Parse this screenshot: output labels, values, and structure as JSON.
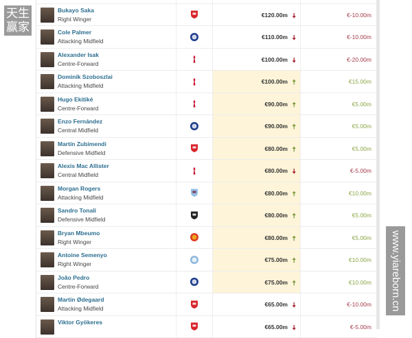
{
  "colors": {
    "up": "#7a9a3a",
    "down": "#a4202c",
    "up_text": "#8aa545",
    "down_text": "#a23a4a",
    "highlight": "#fdf4d9",
    "name_link": "#2c6e8f"
  },
  "players": [
    {
      "name": "",
      "position": "",
      "club": "arsenal",
      "value": "",
      "trend": "",
      "change": ""
    },
    {
      "name": "Bukayo Saka",
      "position": "Right Winger",
      "club": "arsenal",
      "value": "€120.00m",
      "trend": "down",
      "change": "€-10.00m"
    },
    {
      "name": "Cole Palmer",
      "position": "Attacking Midfield",
      "club": "chelsea",
      "value": "€110.00m",
      "trend": "down",
      "change": "€-10.00m"
    },
    {
      "name": "Alexander Isak",
      "position": "Centre-Forward",
      "club": "liverpool",
      "value": "€100.00m",
      "trend": "down",
      "change": "€-20.00m"
    },
    {
      "name": "Dominik Szoboszlai",
      "position": "Attacking Midfield",
      "club": "liverpool",
      "value": "€100.00m",
      "trend": "up",
      "change": "€15.00m"
    },
    {
      "name": "Hugo Ekitiké",
      "position": "Centre-Forward",
      "club": "liverpool",
      "value": "€90.00m",
      "trend": "up",
      "change": "€5.00m"
    },
    {
      "name": "Enzo Fernández",
      "position": "Central Midfield",
      "club": "chelsea",
      "value": "€90.00m",
      "trend": "up",
      "change": "€5.00m"
    },
    {
      "name": "Martín Zubimendi",
      "position": "Defensive Midfield",
      "club": "arsenal",
      "value": "€80.00m",
      "trend": "up",
      "change": "€5.00m"
    },
    {
      "name": "Alexis Mac Allister",
      "position": "Central Midfield",
      "club": "liverpool",
      "value": "€80.00m",
      "trend": "down",
      "change": "€-5.00m"
    },
    {
      "name": "Morgan Rogers",
      "position": "Attacking Midfield",
      "club": "aston-villa",
      "value": "€80.00m",
      "trend": "up",
      "change": "€10.00m"
    },
    {
      "name": "Sandro Tonali",
      "position": "Defensive Midfield",
      "club": "newcastle",
      "value": "€80.00m",
      "trend": "up",
      "change": "€5.00m"
    },
    {
      "name": "Bryan Mbeumo",
      "position": "Right Winger",
      "club": "man-utd",
      "value": "€80.00m",
      "trend": "up",
      "change": "€5.00m"
    },
    {
      "name": "Antoine Semenyo",
      "position": "Right Winger",
      "club": "man-city",
      "value": "€75.00m",
      "trend": "up",
      "change": "€10.00m"
    },
    {
      "name": "João Pedro",
      "position": "Centre-Forward",
      "club": "chelsea",
      "value": "€75.00m",
      "trend": "up",
      "change": "€10.00m"
    },
    {
      "name": "Martin Ødegaard",
      "position": "Attacking Midfield",
      "club": "arsenal",
      "value": "€65.00m",
      "trend": "down",
      "change": "€-10.00m"
    },
    {
      "name": "Viktor Gyökeres",
      "position": "",
      "club": "arsenal",
      "value": "€65.00m",
      "trend": "down",
      "change": "€-5.00m"
    }
  ],
  "highlighted_rows": [
    4,
    5,
    6,
    7,
    8,
    9,
    10,
    11,
    12,
    13
  ],
  "watermarks": {
    "top_left": "天生赢家",
    "bottom_right": "www.yiareborn.cn"
  }
}
